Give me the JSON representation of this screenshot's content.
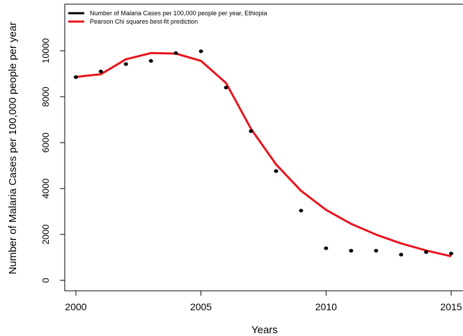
{
  "chart_data": {
    "type": "scatter",
    "xlabel": "Years",
    "ylabel": "Number of Malaria Cases per 100,000 people per year",
    "xlim": [
      2000,
      2015
    ],
    "ylim": [
      0,
      11000
    ],
    "x_ticks": [
      "2000",
      "2005",
      "2010",
      "2015"
    ],
    "y_ticks": [
      "0",
      "2000",
      "4000",
      "6000",
      "8000",
      "10000"
    ],
    "legend_position": "top-left",
    "grid": false,
    "series": [
      {
        "name": "Number of Malaria Cases per 100,000 people per year, Ethiopia",
        "kind": "points",
        "color": "#000000",
        "x": [
          2000,
          2001,
          2002,
          2003,
          2004,
          2005,
          2006,
          2007,
          2008,
          2009,
          2010,
          2011,
          2012,
          2013,
          2014,
          2015
        ],
        "y": [
          8850,
          9100,
          9420,
          9560,
          9900,
          9980,
          8400,
          6500,
          4760,
          3040,
          1400,
          1290,
          1290,
          1120,
          1230,
          1170
        ]
      },
      {
        "name": "Pearson Chi squares best-fit prediction",
        "kind": "line",
        "color": "#e8141c",
        "x": [
          2000,
          2001,
          2002,
          2003,
          2004,
          2005,
          2006,
          2007,
          2008,
          2009,
          2010,
          2011,
          2012,
          2013,
          2014,
          2015
        ],
        "y": [
          8860,
          8980,
          9630,
          9900,
          9880,
          9560,
          8600,
          6600,
          5050,
          3900,
          3070,
          2460,
          1990,
          1610,
          1300,
          1050
        ]
      }
    ]
  }
}
